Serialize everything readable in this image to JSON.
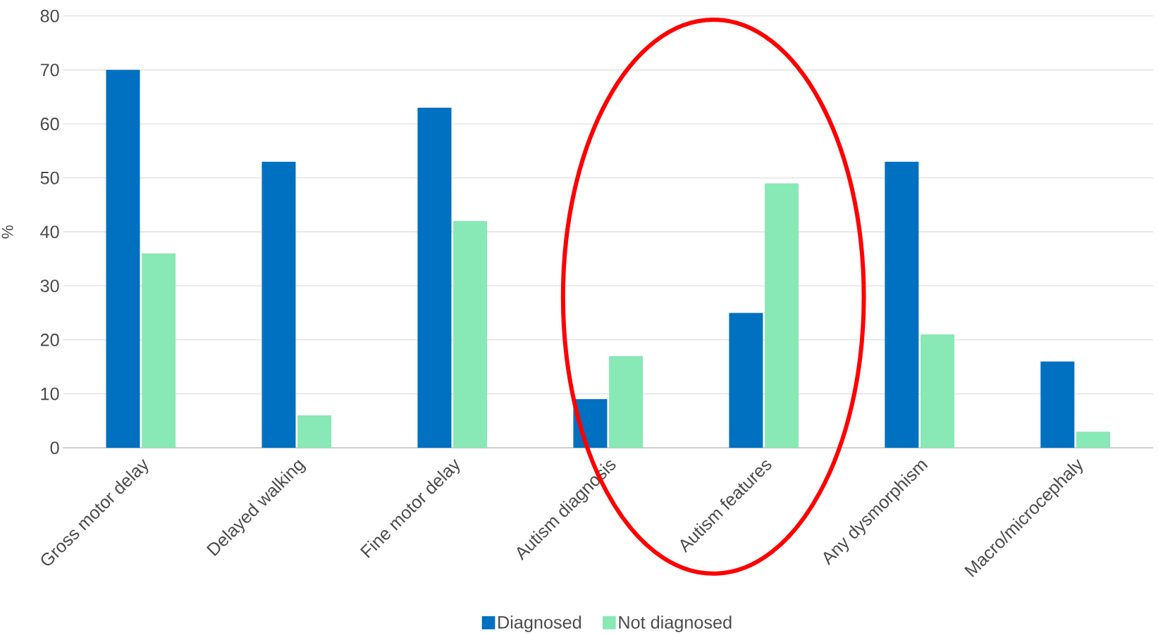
{
  "chart_data": {
    "type": "bar",
    "ylabel": "%",
    "categories": [
      "Gross motor delay",
      "Delayed walking",
      "Fine motor delay",
      "Autism diagnosis",
      "Autism features",
      "Any dysmorphism",
      "Macro/microcephaly"
    ],
    "series": [
      {
        "name": "Diagnosed",
        "color": "#0070c0",
        "values": [
          70,
          53,
          63,
          9,
          25,
          53,
          16
        ]
      },
      {
        "name": "Not diagnosed",
        "color": "#88e8b6",
        "values": [
          36,
          6,
          42,
          17,
          49,
          21,
          3
        ]
      }
    ],
    "ylim": [
      0,
      80
    ],
    "yticks": [
      0,
      10,
      20,
      30,
      40,
      50,
      60,
      70,
      80
    ],
    "grid": "y",
    "legend": "bottom"
  }
}
